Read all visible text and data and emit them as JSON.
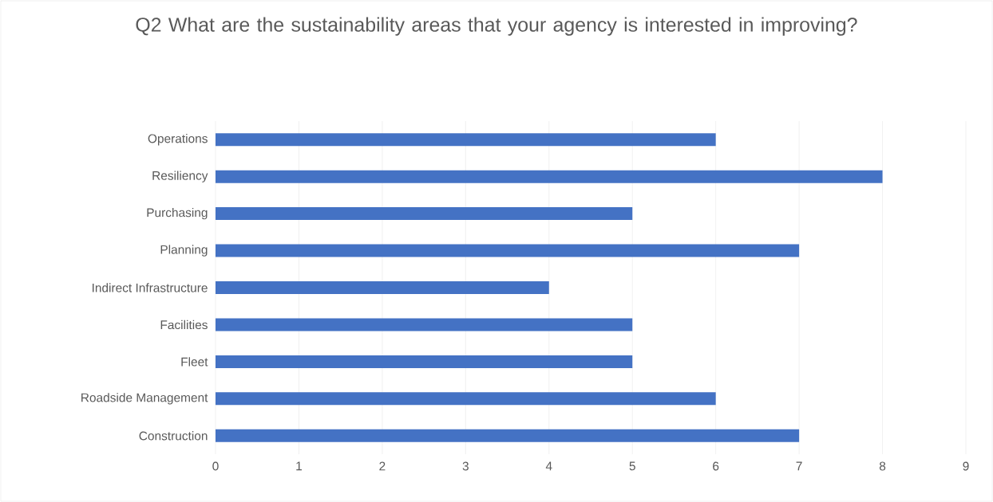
{
  "chart_data": {
    "type": "bar",
    "orientation": "horizontal",
    "title": "Q2 What are the sustainability areas that your agency is interested in improving?",
    "categories": [
      "Operations",
      "Resiliency",
      "Purchasing",
      "Planning",
      "Indirect Infrastructure",
      "Facilities",
      "Fleet",
      "Roadside Management",
      "Construction"
    ],
    "values": [
      6,
      8,
      5,
      7,
      4,
      5,
      5,
      6,
      7
    ],
    "color": "#4472c4",
    "xlim": [
      0,
      9
    ],
    "xticks": [
      0,
      1,
      2,
      3,
      4,
      5,
      6,
      7,
      8,
      9
    ],
    "grid": "x"
  }
}
